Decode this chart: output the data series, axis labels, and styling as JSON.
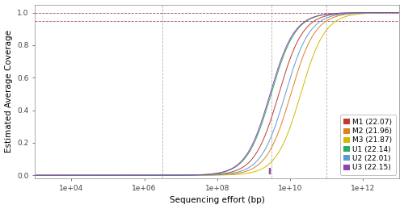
{
  "title": "",
  "xlabel": "Sequencing effort (bp)",
  "ylabel": "Estimated Average Coverage",
  "xlim_log": [
    3,
    13
  ],
  "ylim": [
    -0.02,
    1.05
  ],
  "hlines": [
    1.0,
    0.95
  ],
  "vlines_log": [
    6.5,
    9.5,
    11.0
  ],
  "yticks": [
    0.0,
    0.2,
    0.4,
    0.6,
    0.8,
    1.0
  ],
  "series": [
    {
      "label": "M1 (22.07)",
      "color": "#c0392b",
      "L": 22.07
    },
    {
      "label": "M2 (21.96)",
      "color": "#e08020",
      "L": 21.96
    },
    {
      "label": "M3 (21.87)",
      "color": "#d4b800",
      "L": 21.87
    },
    {
      "label": "U1 (22.14)",
      "color": "#27ae60",
      "L": 22.14
    },
    {
      "label": "U2 (22.01)",
      "color": "#5b9bd5",
      "L": 22.01
    },
    {
      "label": "U3 (22.15)",
      "color": "#8e44ad",
      "L": 22.15
    }
  ],
  "current_effort_log": 9.45,
  "bg_color": "#ffffff",
  "legend_fontsize": 6.5,
  "axis_fontsize": 7.5,
  "tick_fontsize": 6.5,
  "linewidth": 0.7,
  "inflection_log": 9.9,
  "slope": 1.3,
  "L_scale": 3.0
}
